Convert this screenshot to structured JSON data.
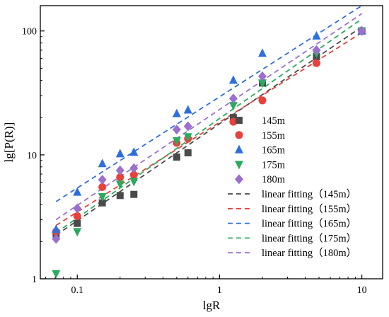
{
  "chart_data": {
    "type": "scatter",
    "title": "",
    "xlabel": "lgR",
    "ylabel": "lg[P(R)]",
    "xscale": "log",
    "yscale": "log",
    "xlim": [
      0.055,
      14
    ],
    "ylim": [
      1,
      160
    ],
    "x_ticks": [
      {
        "value": 0.1,
        "label": "0.1"
      },
      {
        "value": 1,
        "label": "1"
      },
      {
        "value": 10,
        "label": "10"
      }
    ],
    "y_ticks": [
      {
        "value": 1,
        "label": "1"
      },
      {
        "value": 10,
        "label": "10"
      },
      {
        "value": 100,
        "label": "100"
      }
    ],
    "grid": false,
    "legend_position": "bottom-right",
    "series": [
      {
        "name": "145m",
        "marker": "square",
        "color": "#4a4a4a",
        "x": [
          0.071,
          0.1,
          0.15,
          0.2,
          0.25,
          0.5,
          0.6,
          1.25,
          2.0,
          4.8,
          10
        ],
        "y": [
          2.3,
          2.8,
          4.1,
          4.7,
          4.8,
          9.6,
          10.4,
          20,
          38,
          62,
          100
        ]
      },
      {
        "name": "155m",
        "marker": "circle",
        "color": "#e8413c",
        "x": [
          0.071,
          0.1,
          0.15,
          0.2,
          0.25,
          0.5,
          0.6,
          1.25,
          2.0,
          4.8,
          10
        ],
        "y": [
          2.4,
          3.2,
          5.5,
          6.6,
          6.9,
          12.5,
          13.5,
          18.5,
          27.5,
          55,
          100
        ]
      },
      {
        "name": "165m",
        "marker": "triangle-up",
        "color": "#2f6fdc",
        "x": [
          0.071,
          0.1,
          0.15,
          0.2,
          0.25,
          0.5,
          0.6,
          1.25,
          2.0,
          4.8,
          10
        ],
        "y": [
          2.5,
          5.0,
          8.5,
          10.2,
          10.5,
          21.5,
          23,
          40,
          66,
          91,
          100
        ]
      },
      {
        "name": "175m",
        "marker": "triangle-down",
        "color": "#2aab5e",
        "x": [
          0.071,
          0.1,
          0.15,
          0.2,
          0.25,
          0.5,
          0.6,
          1.25,
          2.0,
          4.8,
          10
        ],
        "y": [
          1.1,
          2.4,
          4.6,
          5.8,
          6.1,
          13,
          14,
          25,
          38,
          66,
          100
        ]
      },
      {
        "name": "180m",
        "marker": "diamond",
        "color": "#9b6fd0",
        "x": [
          0.071,
          0.1,
          0.15,
          0.2,
          0.25,
          0.5,
          0.6,
          1.25,
          2.0,
          4.8,
          10
        ],
        "y": [
          2.1,
          3.7,
          6.3,
          7.5,
          7.8,
          16,
          17,
          28.5,
          43,
          70,
          100
        ]
      }
    ],
    "fits": [
      {
        "name": "linear fitting（145m）",
        "color": "#4a4a4a",
        "x": [
          0.071,
          10
        ],
        "y": [
          2.25,
          108
        ]
      },
      {
        "name": "linear fitting（155m）",
        "color": "#e8413c",
        "x": [
          0.071,
          10
        ],
        "y": [
          2.7,
          97
        ]
      },
      {
        "name": "linear fitting（165m）",
        "color": "#2f6fdc",
        "x": [
          0.071,
          10
        ],
        "y": [
          4.2,
          160
        ]
      },
      {
        "name": "linear fitting（175m）",
        "color": "#2aab5e",
        "x": [
          0.071,
          10
        ],
        "y": [
          2.35,
          125
        ]
      },
      {
        "name": "linear fitting（180m）",
        "color": "#9b6fd0",
        "x": [
          0.071,
          10
        ],
        "y": [
          3.0,
          138
        ]
      }
    ]
  }
}
